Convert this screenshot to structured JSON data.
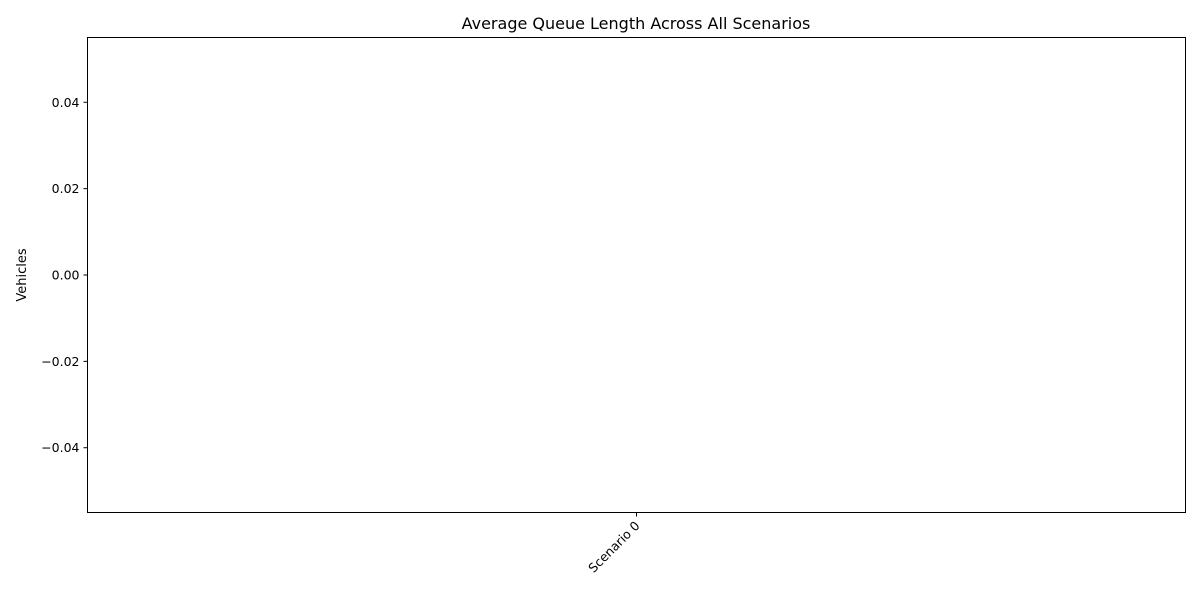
{
  "chart_data": {
    "type": "bar",
    "title": "Average Queue Length Across All Scenarios",
    "xlabel": "",
    "ylabel": "Vehicles",
    "categories": [
      "Scenario 0"
    ],
    "values": [
      0
    ],
    "ylim": [
      -0.055,
      0.055
    ],
    "yticks": [
      0.04,
      0.02,
      0.0,
      -0.02,
      -0.04
    ],
    "ytick_labels": [
      "0.04",
      "0.02",
      "0.00",
      "−0.02",
      "−0.04"
    ],
    "xtick_rotation_deg": 45,
    "grid": false,
    "legend": "none",
    "colors": {
      "axis": "#000000",
      "background": "#ffffff",
      "bar": "#1f77b4"
    }
  }
}
